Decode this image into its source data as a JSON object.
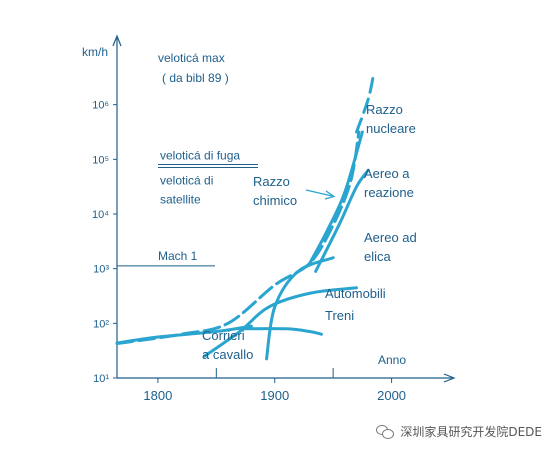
{
  "chart_data": {
    "type": "line",
    "y_scale": "log",
    "y_unit_label": "km/h",
    "y_tick_labels": [
      "10¹",
      "10²",
      "10³",
      "10⁴",
      "10⁵",
      "10⁶"
    ],
    "y_tick_values": [
      1,
      2,
      3,
      4,
      5,
      6
    ],
    "x_tick_labels": [
      "1800",
      "1900",
      "2000"
    ],
    "x_tick_values": [
      1800,
      1900,
      2000
    ],
    "x_axis_label": "Anno",
    "xlim": [
      1765,
      2050
    ],
    "ylim_log10": [
      1,
      7
    ],
    "reference_lines": [
      {
        "label": "Mach 1",
        "log10_value": 3.05
      },
      {
        "label": "veloticá di fuga",
        "log10_value": 4.85,
        "double": true
      },
      {
        "label": "veloticá di satellite",
        "log10_value": 4.85
      }
    ],
    "text_annotations": {
      "max_line1": "veloticá  max",
      "max_line2": "( da  bibl  89 )",
      "fuga": "veloticá di fuga",
      "satellite_line1": "veloticá  di",
      "satellite_line2": "satellite",
      "mach": "Mach 1"
    },
    "series": [
      {
        "name": "Corrieri a cavallo",
        "label_lines": [
          "Corrieri",
          "a cavallo"
        ],
        "points": [
          [
            1765,
            1.64
          ],
          [
            1800,
            1.75
          ],
          [
            1850,
            1.85
          ],
          [
            1880,
            1.95
          ]
        ]
      },
      {
        "name": "Treni",
        "label_lines": [
          "Treni"
        ],
        "points": [
          [
            1840,
            1.4
          ],
          [
            1870,
            1.85
          ],
          [
            1895,
            2.3
          ],
          [
            1930,
            2.55
          ],
          [
            1970,
            2.65
          ]
        ]
      },
      {
        "name": "Automobili",
        "label_lines": [
          "Automobili"
        ],
        "points": [
          [
            1870,
            1.9
          ],
          [
            1910,
            1.9
          ],
          [
            1930,
            1.85
          ],
          [
            1940,
            1.8
          ]
        ]
      },
      {
        "name": "Aereo ad elica",
        "label_lines": [
          "Aereo ad",
          "elica"
        ],
        "points": [
          [
            1893,
            1.35
          ],
          [
            1900,
            2.3
          ],
          [
            1920,
            2.95
          ],
          [
            1950,
            3.2
          ]
        ]
      },
      {
        "name": "Aereo a reazione",
        "label_lines": [
          "Aereo a",
          "reazione"
        ],
        "points": [
          [
            1935,
            2.95
          ],
          [
            1955,
            3.8
          ],
          [
            1970,
            4.5
          ],
          [
            1980,
            4.8
          ]
        ]
      },
      {
        "name": "Razzo chimico",
        "label_lines": [
          "Razzo",
          "chimico"
        ],
        "points": [
          [
            1930,
            3.1
          ],
          [
            1945,
            3.7
          ],
          [
            1960,
            4.4
          ],
          [
            1975,
            5.5
          ]
        ]
      },
      {
        "name": "Razzo nucleare",
        "label_lines": [
          "Razzo",
          "nucleare"
        ],
        "dashed": true,
        "points": [
          [
            1970,
            5.5
          ],
          [
            1980,
            6.1
          ],
          [
            1985,
            6.6
          ]
        ]
      }
    ]
  },
  "watermark": {
    "text": "深圳家具研究开发院DEDE"
  },
  "colors": {
    "curve": "#2aa5cf",
    "axis": "#1e5f8c",
    "text": "#1e5f8c"
  }
}
